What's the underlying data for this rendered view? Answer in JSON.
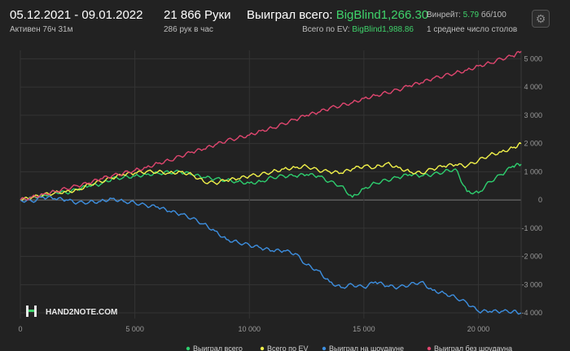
{
  "header": {
    "date_range": "05.12.2021 - 09.01.2022",
    "active_time": "Активен 76ч 31м",
    "hands": "21 866 Руки",
    "hands_per_hour": "286 рук в час",
    "won_total_label": "Выиграл всего:",
    "won_total_value": "BigBlind1,266.30",
    "ev_total_label": "Всего по EV:",
    "ev_total_value": "BigBlind1,988.86",
    "winrate_label": "Винрейт:",
    "winrate_value": "5.79",
    "winrate_unit": "бб/100",
    "avg_tables": "1 среднее число столов",
    "settings_icon": "gear-icon"
  },
  "logo": {
    "text": "HAND2NOTE.COM"
  },
  "colors": {
    "background": "#222222",
    "won_total": "#2ecf6f",
    "ev_total": "#f2f24a",
    "showdown": "#3d8fe0",
    "non_showdown": "#e0466f",
    "accent_green": "#3fd36b"
  },
  "chart_data": {
    "type": "line",
    "x_ticks": [
      "0",
      "5 000",
      "10 000",
      "15 000",
      "20 000"
    ],
    "y_ticks": [
      "5 000",
      "4 000",
      "3 000",
      "2 000",
      "1 000",
      "0",
      "-1 000",
      "-2 000",
      "-3 000",
      "-4 000"
    ],
    "xlim": [
      0,
      21866
    ],
    "ylim": [
      -4200,
      5300
    ],
    "grid": true,
    "legend_position": "bottom",
    "series": [
      {
        "name": "Выиграл всего",
        "color": "#2ecf6f",
        "x": [
          0,
          500,
          1000,
          1500,
          2000,
          2500,
          3000,
          3500,
          4000,
          4500,
          5000,
          5500,
          6000,
          6500,
          7000,
          7500,
          8000,
          8500,
          9000,
          9500,
          10000,
          10500,
          11000,
          11500,
          12000,
          12500,
          13000,
          13500,
          14000,
          14500,
          15000,
          15500,
          16000,
          16500,
          17000,
          17500,
          18000,
          18500,
          19000,
          19500,
          20000,
          20500,
          21000,
          21500,
          21866
        ],
        "values": [
          0,
          100,
          150,
          300,
          250,
          380,
          500,
          550,
          750,
          800,
          850,
          900,
          950,
          980,
          1000,
          900,
          800,
          750,
          700,
          650,
          600,
          650,
          800,
          850,
          850,
          900,
          850,
          650,
          500,
          100,
          400,
          600,
          700,
          800,
          900,
          850,
          900,
          1000,
          1100,
          300,
          250,
          650,
          900,
          1200,
          1266
        ]
      },
      {
        "name": "Всего по EV",
        "color": "#f2f24a",
        "x": [
          0,
          500,
          1000,
          1500,
          2000,
          2500,
          3000,
          3500,
          4000,
          4500,
          5000,
          5500,
          6000,
          6500,
          7000,
          7500,
          8000,
          8500,
          9000,
          9500,
          10000,
          10500,
          11000,
          11500,
          12000,
          12500,
          13000,
          13500,
          14000,
          14500,
          15000,
          15500,
          16000,
          16500,
          17000,
          17500,
          18000,
          18500,
          19000,
          19500,
          20000,
          20500,
          21000,
          21500,
          21866
        ],
        "values": [
          0,
          80,
          180,
          250,
          300,
          350,
          550,
          650,
          780,
          900,
          950,
          1000,
          1000,
          950,
          1000,
          900,
          650,
          600,
          700,
          750,
          850,
          900,
          1000,
          1100,
          1150,
          1200,
          1050,
          1000,
          950,
          1100,
          1200,
          1150,
          1300,
          1150,
          1000,
          950,
          1100,
          1200,
          1250,
          1200,
          1400,
          1600,
          1700,
          1850,
          1989
        ]
      },
      {
        "name": "Выиграл на шоудауне",
        "color": "#3d8fe0",
        "x": [
          0,
          500,
          1000,
          1500,
          2000,
          2500,
          3000,
          3500,
          4000,
          4500,
          5000,
          5500,
          6000,
          6500,
          7000,
          7500,
          8000,
          8500,
          9000,
          9500,
          10000,
          10500,
          11000,
          11500,
          12000,
          12500,
          13000,
          13500,
          14000,
          14500,
          15000,
          15500,
          16000,
          16500,
          17000,
          17500,
          18000,
          18500,
          19000,
          19500,
          20000,
          20500,
          21000,
          21500,
          21866
        ],
        "values": [
          0,
          -50,
          100,
          50,
          0,
          -100,
          -80,
          -50,
          50,
          -50,
          -100,
          -200,
          -250,
          -400,
          -500,
          -650,
          -850,
          -1100,
          -1400,
          -1500,
          -1600,
          -1700,
          -1800,
          -1800,
          -1900,
          -2300,
          -2500,
          -2900,
          -3100,
          -3000,
          -3100,
          -2900,
          -3050,
          -3100,
          -3000,
          -2900,
          -3200,
          -3300,
          -3450,
          -3650,
          -3950,
          -3950,
          -3950,
          -3950,
          -4000
        ]
      },
      {
        "name": "Выиграл без шоудауна",
        "color": "#e0466f",
        "x": [
          0,
          500,
          1000,
          1500,
          2000,
          2500,
          3000,
          3500,
          4000,
          4500,
          5000,
          5500,
          6000,
          6500,
          7000,
          7500,
          8000,
          8500,
          9000,
          9500,
          10000,
          10500,
          11000,
          11500,
          12000,
          12500,
          13000,
          13500,
          14000,
          14500,
          15000,
          15500,
          16000,
          16500,
          17000,
          17500,
          18000,
          18500,
          19000,
          19500,
          20000,
          20500,
          21000,
          21500,
          21866
        ],
        "values": [
          0,
          100,
          200,
          300,
          400,
          500,
          600,
          750,
          850,
          950,
          1050,
          1150,
          1300,
          1400,
          1550,
          1700,
          1800,
          1950,
          2100,
          2200,
          2300,
          2450,
          2550,
          2700,
          2850,
          3000,
          3100,
          3250,
          3350,
          3450,
          3600,
          3700,
          3800,
          3900,
          4050,
          4150,
          4300,
          4400,
          4500,
          4600,
          4750,
          4850,
          5000,
          5100,
          5266
        ]
      }
    ]
  }
}
